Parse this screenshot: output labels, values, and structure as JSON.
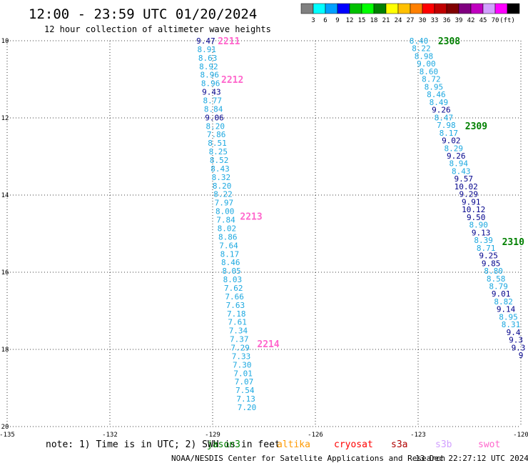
{
  "header": {
    "title": "12:00 - 23:59 UTC 01/20/2024",
    "subtitle": "12 hour collection of altimeter wave heights"
  },
  "colorbar": {
    "colors": [
      "#808080",
      "#00ffff",
      "#00a0ff",
      "#0000ff",
      "#00c000",
      "#00ff00",
      "#008000",
      "#ffff00",
      "#ffc000",
      "#ff8000",
      "#ff0000",
      "#c00000",
      "#800000",
      "#800080",
      "#c000c0",
      "#d2a0ff",
      "#ff00ff",
      "#000000"
    ],
    "labels": [
      "3",
      "6",
      "9",
      "12",
      "15",
      "18",
      "21",
      "24",
      "27",
      "30",
      "33",
      "36",
      "39",
      "42",
      "45",
      "70",
      "(ft)"
    ]
  },
  "map": {
    "lon_ticks": [
      "-135",
      "-132",
      "-129",
      "-126",
      "-123",
      "-120"
    ],
    "lat_ticks": [
      "10",
      "12",
      "14",
      "16",
      "18",
      "20"
    ],
    "lon_range": [
      -135,
      -120
    ],
    "lat_range": [
      10,
      20
    ]
  },
  "passes": [
    {
      "color": "#008000",
      "labels": [
        {
          "text": "2308",
          "lon": -122.42,
          "lat": 10.0
        },
        {
          "text": "2309",
          "lon": -121.63,
          "lat": 12.2
        },
        {
          "text": "2310",
          "lon": -120.55,
          "lat": 15.2
        }
      ]
    },
    {
      "color": "#ff66cc",
      "labels": [
        {
          "text": "2211",
          "lon": -128.85,
          "lat": 10.0
        },
        {
          "text": "2212",
          "lon": -128.75,
          "lat": 11.0
        },
        {
          "text": "2213",
          "lon": -128.2,
          "lat": 14.55
        },
        {
          "text": "2214",
          "lon": -127.7,
          "lat": 17.85
        }
      ]
    }
  ],
  "tracks": [
    {
      "id": "west",
      "start": {
        "lon": -129.2,
        "lat": 10.0
      },
      "end": {
        "lon": -128.0,
        "lat": 19.5
      },
      "points": [
        [
          "9.47",
          "#00008b"
        ],
        [
          "8.91",
          "#1ca8e0"
        ],
        [
          "8.63",
          "#1ca8e0"
        ],
        [
          "8.92",
          "#1ca8e0"
        ],
        [
          "8.96",
          "#1ca8e0"
        ],
        [
          "8.96",
          "#1ca8e0"
        ],
        [
          "9.43",
          "#00008b"
        ],
        [
          "8.77",
          "#1ca8e0"
        ],
        [
          "8.84",
          "#1ca8e0"
        ],
        [
          "9.06",
          "#00008b"
        ],
        [
          "8.20",
          "#1ca8e0"
        ],
        [
          "7.86",
          "#1ca8e0"
        ],
        [
          "8.51",
          "#1ca8e0"
        ],
        [
          "8.25",
          "#1ca8e0"
        ],
        [
          "8.52",
          "#1ca8e0"
        ],
        [
          "8.43",
          "#1ca8e0"
        ],
        [
          "8.32",
          "#1ca8e0"
        ],
        [
          "8.20",
          "#1ca8e0"
        ],
        [
          "8.22",
          "#1ca8e0"
        ],
        [
          "7.97",
          "#1ca8e0"
        ],
        [
          "8.00",
          "#1ca8e0"
        ],
        [
          "7.84",
          "#1ca8e0"
        ],
        [
          "8.02",
          "#1ca8e0"
        ],
        [
          "8.86",
          "#1ca8e0"
        ],
        [
          "7.64",
          "#1ca8e0"
        ],
        [
          "8.17",
          "#1ca8e0"
        ],
        [
          "8.46",
          "#1ca8e0"
        ],
        [
          "8.05",
          "#1ca8e0"
        ],
        [
          "8.03",
          "#1ca8e0"
        ],
        [
          "7.62",
          "#1ca8e0"
        ],
        [
          "7.66",
          "#1ca8e0"
        ],
        [
          "7.63",
          "#1ca8e0"
        ],
        [
          "7.18",
          "#1ca8e0"
        ],
        [
          "7.61",
          "#1ca8e0"
        ],
        [
          "7.34",
          "#1ca8e0"
        ],
        [
          "7.37",
          "#1ca8e0"
        ],
        [
          "7.29",
          "#1ca8e0"
        ],
        [
          "7.33",
          "#1ca8e0"
        ],
        [
          "7.30",
          "#1ca8e0"
        ],
        [
          "7.01",
          "#1ca8e0"
        ],
        [
          "7.07",
          "#1ca8e0"
        ],
        [
          "7.54",
          "#1ca8e0"
        ],
        [
          "7.13",
          "#1ca8e0"
        ],
        [
          "7.20",
          "#1ca8e0"
        ]
      ]
    },
    {
      "id": "east",
      "start": {
        "lon": -122.98,
        "lat": 10.0
      },
      "end": {
        "lon": -120.0,
        "lat": 18.15
      },
      "points": [
        [
          "8.40",
          "#1ca8e0"
        ],
        [
          "8.22",
          "#1ca8e0"
        ],
        [
          "8.98",
          "#1ca8e0"
        ],
        [
          "9.00",
          "#1ca8e0"
        ],
        [
          "8.60",
          "#1ca8e0"
        ],
        [
          "8.72",
          "#1ca8e0"
        ],
        [
          "8.95",
          "#1ca8e0"
        ],
        [
          "8.46",
          "#1ca8e0"
        ],
        [
          "8.49",
          "#1ca8e0"
        ],
        [
          "9.26",
          "#00008b"
        ],
        [
          "8.47",
          "#1ca8e0"
        ],
        [
          "7.98",
          "#1ca8e0"
        ],
        [
          "8.17",
          "#1ca8e0"
        ],
        [
          "9.02",
          "#00008b"
        ],
        [
          "8.29",
          "#1ca8e0"
        ],
        [
          "9.26",
          "#00008b"
        ],
        [
          "8.94",
          "#1ca8e0"
        ],
        [
          "8.43",
          "#1ca8e0"
        ],
        [
          "9.57",
          "#00008b"
        ],
        [
          "10.02",
          "#00008b"
        ],
        [
          "9.29",
          "#00008b"
        ],
        [
          "9.91",
          "#00008b"
        ],
        [
          "10.12",
          "#00008b"
        ],
        [
          "9.50",
          "#00008b"
        ],
        [
          "8.90",
          "#1ca8e0"
        ],
        [
          "9.13",
          "#00008b"
        ],
        [
          "8.39",
          "#1ca8e0"
        ],
        [
          "8.71",
          "#1ca8e0"
        ],
        [
          "9.25",
          "#00008b"
        ],
        [
          "9.85",
          "#00008b"
        ],
        [
          "8.80",
          "#1ca8e0"
        ],
        [
          "8.58",
          "#1ca8e0"
        ],
        [
          "8.79",
          "#1ca8e0"
        ],
        [
          "9.01",
          "#00008b"
        ],
        [
          "8.82",
          "#1ca8e0"
        ],
        [
          "9.14",
          "#00008b"
        ],
        [
          "8.95",
          "#1ca8e0"
        ],
        [
          "8.31",
          "#1ca8e0"
        ],
        [
          "9.4",
          "#00008b"
        ],
        [
          "9.3",
          "#00008b"
        ],
        [
          "9.3",
          "#00008b"
        ],
        [
          "9",
          "#00008b"
        ]
      ]
    }
  ],
  "footer": {
    "note": "note: 1) Time is in UTC; 2) SWH is in feet",
    "legend": [
      {
        "label": "jason3",
        "color": "#008000"
      },
      {
        "label": "altika",
        "color": "#ff9900"
      },
      {
        "label": "cryosat",
        "color": "#ff0000"
      },
      {
        "label": "s3a",
        "color": "#b00000"
      },
      {
        "label": "s3b",
        "color": "#d2a0ff"
      },
      {
        "label": "swot",
        "color": "#ff66cc"
      }
    ],
    "credit": "NOAA/NESDIS Center for Satellite Applications and Research",
    "timestamp": "13 Dec 22:27:12 UTC 2024"
  }
}
